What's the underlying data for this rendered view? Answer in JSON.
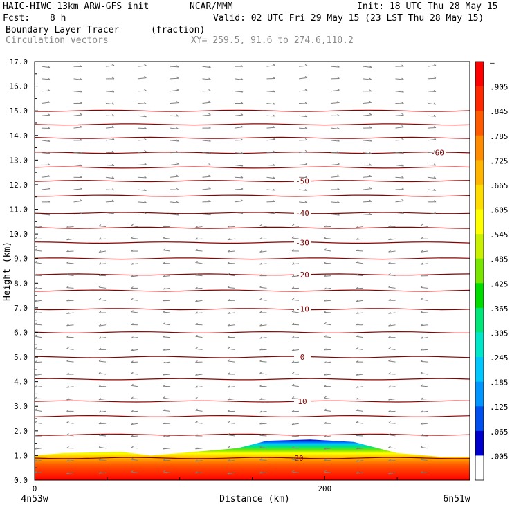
{
  "header": {
    "line1_left": "HAIC-HIWC 13km ARW-GFS init",
    "line1_mid": "NCAR/MMM",
    "line1_right": "Init: 18 UTC Thu 28 May 15",
    "fcst_label": "Fcst:",
    "fcst_value": "8 h",
    "valid": "Valid: 02 UTC Fri 29 May 15 (23 LST Thu 28 May 15)",
    "field": "Boundary Layer Tracer",
    "units": "(fraction)",
    "vectors": "Circulation vectors",
    "xy": "XY= 259.5, 91.6 to 274.6,110.2"
  },
  "colors": {
    "contour": "#8b0000",
    "vector": "#808080",
    "palette": [
      "#ffffff",
      "#0000cd",
      "#0050f0",
      "#0096ff",
      "#00c8ff",
      "#00e6c8",
      "#00e678",
      "#00dc00",
      "#78e600",
      "#c8f000",
      "#ffff00",
      "#ffdc00",
      "#ffb400",
      "#ff8c00",
      "#ff5a00",
      "#ff2800",
      "#ff0000"
    ]
  },
  "chart_data": {
    "type": "contour-cross-section",
    "xlabel": "Distance (km)",
    "ylabel": "Height (km)",
    "xlim": [
      0,
      300
    ],
    "ylim": [
      0,
      17
    ],
    "x_tick_labels": [
      {
        "x": 0,
        "label": "0"
      },
      {
        "x": 200,
        "label": "200"
      }
    ],
    "x_end_labels": {
      "left": "4n53w",
      "right": "6n51w"
    },
    "y_ticks": [
      0,
      1,
      2,
      3,
      4,
      5,
      6,
      7,
      8,
      9,
      10,
      11,
      12,
      13,
      14,
      15,
      16,
      17
    ],
    "y_tick_labels": [
      "0.0",
      "1.0",
      "2.0",
      "3.0",
      "4.0",
      "5.0",
      "6.0",
      "7.0",
      "8.0",
      "9.0",
      "10.0",
      "11.0",
      "12.0",
      "13.0",
      "14.0",
      "15.0",
      "16.0",
      "17.0"
    ],
    "colorbar_labels": [
      "–",
      ".905",
      ".845",
      ".785",
      ".725",
      ".665",
      ".605",
      ".545",
      ".485",
      ".425",
      ".365",
      ".305",
      ".245",
      ".185",
      ".125",
      ".065",
      ".005"
    ],
    "temperature_contours": [
      {
        "level": "20",
        "height_km": 0.9
      },
      {
        "level": "",
        "height_km": 1.85
      },
      {
        "level": "",
        "height_km": 2.6
      },
      {
        "level": "10",
        "height_km": 3.2
      },
      {
        "level": "",
        "height_km": 4.1
      },
      {
        "level": "0",
        "height_km": 5.0
      },
      {
        "level": "",
        "height_km": 6.0
      },
      {
        "level": "-10",
        "height_km": 6.95
      },
      {
        "level": "",
        "height_km": 7.7
      },
      {
        "level": "-20",
        "height_km": 8.35
      },
      {
        "level": "",
        "height_km": 9.0
      },
      {
        "level": "-30",
        "height_km": 9.65
      },
      {
        "level": "",
        "height_km": 10.25
      },
      {
        "level": "-40",
        "height_km": 10.85
      },
      {
        "level": "",
        "height_km": 11.55
      },
      {
        "level": "-50",
        "height_km": 12.15
      },
      {
        "level": "",
        "height_km": 12.7
      },
      {
        "level": "-60",
        "height_km": 13.3
      },
      {
        "level": "",
        "height_km": 13.9
      },
      {
        "level": "",
        "height_km": 14.45
      },
      {
        "level": "",
        "height_km": 15.0
      }
    ],
    "boundary_layer_top_km": [
      {
        "x": 0,
        "h": 1.0
      },
      {
        "x": 20,
        "h": 1.1
      },
      {
        "x": 60,
        "h": 1.15
      },
      {
        "x": 80,
        "h": 1.0
      },
      {
        "x": 110,
        "h": 1.15
      },
      {
        "x": 140,
        "h": 1.3
      },
      {
        "x": 160,
        "h": 1.6
      },
      {
        "x": 190,
        "h": 1.65
      },
      {
        "x": 220,
        "h": 1.55
      },
      {
        "x": 250,
        "h": 1.1
      },
      {
        "x": 280,
        "h": 0.95
      },
      {
        "x": 300,
        "h": 0.95
      }
    ],
    "vector_direction": {
      "upper_eastward_above_km": 10.5,
      "westward_below_km": 10.5
    }
  }
}
